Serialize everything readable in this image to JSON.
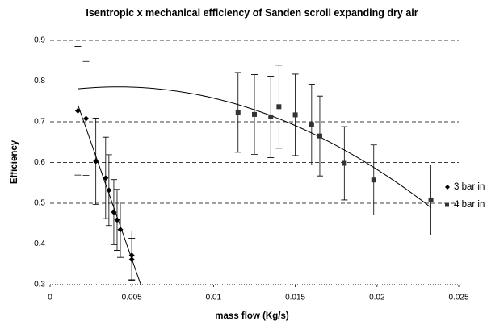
{
  "chart_data": {
    "type": "scatter",
    "title": "Isentropic x mechanical efficiency of Sanden scroll expanding dry air",
    "x_label": "mass flow (Kg/s)",
    "y_label": "Efficiency",
    "xlim": [
      0,
      0.025
    ],
    "ylim": [
      0.3,
      0.9
    ],
    "xticks": [
      0,
      0.005,
      0.01,
      0.015,
      0.02,
      0.025
    ],
    "yticks": [
      0.3,
      0.4,
      0.5,
      0.6,
      0.7,
      0.8,
      0.9
    ],
    "grid": true,
    "legend": "right",
    "series": [
      {
        "name": "3 bar in",
        "color": "#000000",
        "marker": "diamond",
        "trendline": "linear",
        "x": [
          0.0017,
          0.0022,
          0.0028,
          0.0034,
          0.0036,
          0.0039,
          0.0041,
          0.0043,
          0.005,
          0.005
        ],
        "values": [
          0.727,
          0.708,
          0.603,
          0.562,
          0.532,
          0.478,
          0.459,
          0.435,
          0.372,
          0.362
        ],
        "errors": [
          0.158,
          0.14,
          0.106,
          0.1,
          0.087,
          0.08,
          0.075,
          0.068,
          0.06,
          0.052
        ]
      },
      {
        "name": "4 bar in",
        "color": "#333333",
        "marker": "square",
        "trendline": "poly2",
        "x": [
          0.0115,
          0.0125,
          0.0135,
          0.014,
          0.015,
          0.016,
          0.0165,
          0.018,
          0.0198,
          0.0233
        ],
        "values": [
          0.723,
          0.718,
          0.712,
          0.737,
          0.717,
          0.693,
          0.665,
          0.598,
          0.557,
          0.508
        ],
        "errors": [
          0.098,
          0.098,
          0.1,
          0.102,
          0.1,
          0.099,
          0.098,
          0.09,
          0.086,
          0.086
        ]
      }
    ]
  }
}
